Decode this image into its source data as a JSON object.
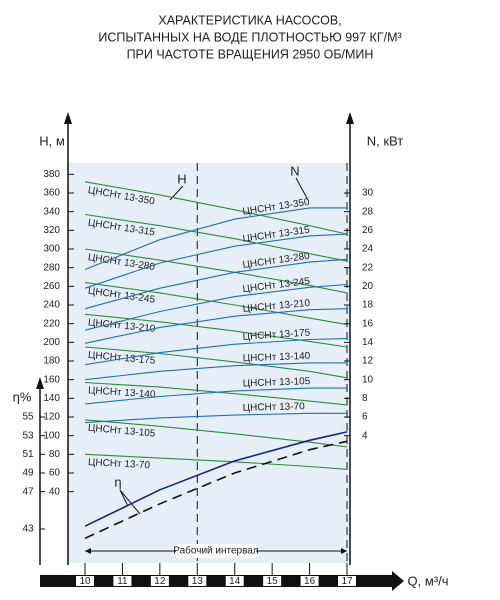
{
  "chart_data": {
    "type": "line",
    "title": [
      "ХАРАКТЕРИСТИКА НАСОСОВ,",
      "ИСПЫТАННЫХ НА ВОДЕ ПЛОТНОСТЬЮ 997 КГ/М³",
      "ПРИ ЧАСТОТЕ ВРАЩЕНИЯ 2950 ОБ/МИН"
    ],
    "x": [
      10,
      12,
      14,
      16,
      17
    ],
    "xlim": [
      9.5,
      17.1
    ],
    "xticks": [
      10,
      11,
      12,
      13,
      14,
      15,
      16,
      17
    ],
    "xlabel": "Q, м³/ч",
    "ylabel": "H, м",
    "ylim": [
      -30,
      390
    ],
    "yticks": [
      40,
      60,
      80,
      100,
      120,
      140,
      160,
      180,
      200,
      220,
      240,
      260,
      280,
      300,
      320,
      340,
      360,
      380
    ],
    "y2label": "N, кВт",
    "y2lim": [
      -9,
      33
    ],
    "y2ticks": [
      4,
      6,
      8,
      10,
      12,
      14,
      16,
      18,
      20,
      22,
      24,
      26,
      28,
      30
    ],
    "y3label": "η%",
    "y3lim": [
      40,
      82
    ],
    "y3ticks": [
      43,
      47,
      49,
      51,
      53,
      55
    ],
    "vlines": [
      13,
      17
    ],
    "interval": [
      10,
      17
    ],
    "interval_label": "Рабочий интервал",
    "annotations": [
      "H",
      "N",
      "η"
    ],
    "series": [
      {
        "name": "ЦНСНт 13-350",
        "axis": "y",
        "color": "#2e8b3a",
        "values": [
          372,
          358,
          342,
          325,
          316
        ]
      },
      {
        "name": "ЦНСНт 13-315",
        "axis": "y",
        "color": "#2e8b3a",
        "values": [
          337,
          325,
          311,
          295,
          287
        ]
      },
      {
        "name": "ЦНСНт 13-280",
        "axis": "y",
        "color": "#2e8b3a",
        "values": [
          300,
          288,
          275,
          261,
          253
        ]
      },
      {
        "name": "ЦНСНт 13-245",
        "axis": "y",
        "color": "#2e8b3a",
        "values": [
          264,
          253,
          240,
          226,
          219
        ]
      },
      {
        "name": "ЦНСНт 13-210",
        "axis": "y",
        "color": "#2e8b3a",
        "values": [
          230,
          222,
          212,
          201,
          195
        ]
      },
      {
        "name": "ЦНСНт 13-175",
        "axis": "y",
        "color": "#2e8b3a",
        "values": [
          195,
          188,
          179,
          169,
          162
        ]
      },
      {
        "name": "ЦНСНт 13-140",
        "axis": "y",
        "color": "#2e8b3a",
        "values": [
          157,
          152,
          145,
          137,
          133
        ]
      },
      {
        "name": "ЦНСНт 13-105",
        "axis": "y",
        "color": "#2e8b3a",
        "values": [
          117,
          110,
          102,
          93,
          88
        ]
      },
      {
        "name": "ЦНСНт 13-70",
        "axis": "y",
        "color": "#2e8b3a",
        "values": [
          80,
          76,
          72,
          67,
          64
        ]
      },
      {
        "name": "ЦНСНт 13-350",
        "axis": "y2",
        "color": "#1f6fb5",
        "values": [
          21.8,
          25,
          27.2,
          28.4,
          28.4
        ]
      },
      {
        "name": "ЦНСНт 13-315",
        "axis": "y2",
        "color": "#1f6fb5",
        "values": [
          19.8,
          22.5,
          24.3,
          25.4,
          25.6
        ]
      },
      {
        "name": "ЦНСНт 13-280",
        "axis": "y2",
        "color": "#1f6fb5",
        "values": [
          17.6,
          19.8,
          21.5,
          22.6,
          22.9
        ]
      },
      {
        "name": "ЦНСНт 13-245",
        "axis": "y2",
        "color": "#1f6fb5",
        "values": [
          15.3,
          17.3,
          18.9,
          19.9,
          20.2
        ]
      },
      {
        "name": "ЦНСНт 13-210",
        "axis": "y2",
        "color": "#1f6fb5",
        "values": [
          13.9,
          15.6,
          16.8,
          17.5,
          17.6
        ]
      },
      {
        "name": "ЦНСНт 13-175",
        "axis": "y2",
        "color": "#1f6fb5",
        "values": [
          11.6,
          12.9,
          13.8,
          14.3,
          14.4
        ]
      },
      {
        "name": "ЦНСНт 13-140",
        "axis": "y2",
        "color": "#1f6fb5",
        "values": [
          10,
          10.9,
          11.5,
          11.8,
          11.8
        ]
      },
      {
        "name": "ЦНСНт 13-105",
        "axis": "y2",
        "color": "#1f6fb5",
        "values": [
          7.4,
          8.2,
          8.8,
          9.1,
          9.1
        ]
      },
      {
        "name": "ЦНСНт 13-70",
        "axis": "y2",
        "color": "#1f6fb5",
        "values": [
          5.4,
          5.9,
          6.2,
          6.4,
          6.4
        ]
      },
      {
        "axis": "y3",
        "color": "#1a237e",
        "values": [
          43.3,
          47.2,
          50.3,
          52.5,
          53.4
        ]
      },
      {
        "axis": "y3",
        "color": "#111111",
        "dashed": true,
        "values": [
          42,
          45.7,
          49,
          51.5,
          52.4
        ]
      }
    ]
  }
}
